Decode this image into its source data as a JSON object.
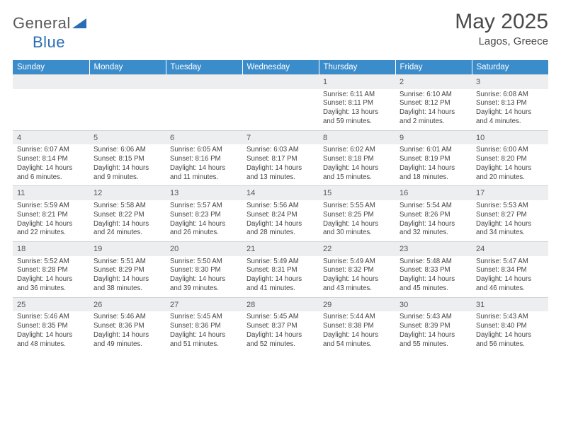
{
  "logo": {
    "word1": "General",
    "word2": "Blue"
  },
  "title": {
    "month": "May 2025",
    "location": "Lagos, Greece"
  },
  "dayHeaders": [
    "Sunday",
    "Monday",
    "Tuesday",
    "Wednesday",
    "Thursday",
    "Friday",
    "Saturday"
  ],
  "colors": {
    "header_bg": "#3b8ccb",
    "header_text": "#ffffff",
    "daynum_bg": "#eceef0",
    "body_text": "#444444",
    "logo_blue": "#2a6db6"
  },
  "weeks": [
    [
      null,
      null,
      null,
      null,
      {
        "n": "1",
        "sr": "Sunrise: 6:11 AM",
        "ss": "Sunset: 8:11 PM",
        "dl": "Daylight: 13 hours and 59 minutes."
      },
      {
        "n": "2",
        "sr": "Sunrise: 6:10 AM",
        "ss": "Sunset: 8:12 PM",
        "dl": "Daylight: 14 hours and 2 minutes."
      },
      {
        "n": "3",
        "sr": "Sunrise: 6:08 AM",
        "ss": "Sunset: 8:13 PM",
        "dl": "Daylight: 14 hours and 4 minutes."
      }
    ],
    [
      {
        "n": "4",
        "sr": "Sunrise: 6:07 AM",
        "ss": "Sunset: 8:14 PM",
        "dl": "Daylight: 14 hours and 6 minutes."
      },
      {
        "n": "5",
        "sr": "Sunrise: 6:06 AM",
        "ss": "Sunset: 8:15 PM",
        "dl": "Daylight: 14 hours and 9 minutes."
      },
      {
        "n": "6",
        "sr": "Sunrise: 6:05 AM",
        "ss": "Sunset: 8:16 PM",
        "dl": "Daylight: 14 hours and 11 minutes."
      },
      {
        "n": "7",
        "sr": "Sunrise: 6:03 AM",
        "ss": "Sunset: 8:17 PM",
        "dl": "Daylight: 14 hours and 13 minutes."
      },
      {
        "n": "8",
        "sr": "Sunrise: 6:02 AM",
        "ss": "Sunset: 8:18 PM",
        "dl": "Daylight: 14 hours and 15 minutes."
      },
      {
        "n": "9",
        "sr": "Sunrise: 6:01 AM",
        "ss": "Sunset: 8:19 PM",
        "dl": "Daylight: 14 hours and 18 minutes."
      },
      {
        "n": "10",
        "sr": "Sunrise: 6:00 AM",
        "ss": "Sunset: 8:20 PM",
        "dl": "Daylight: 14 hours and 20 minutes."
      }
    ],
    [
      {
        "n": "11",
        "sr": "Sunrise: 5:59 AM",
        "ss": "Sunset: 8:21 PM",
        "dl": "Daylight: 14 hours and 22 minutes."
      },
      {
        "n": "12",
        "sr": "Sunrise: 5:58 AM",
        "ss": "Sunset: 8:22 PM",
        "dl": "Daylight: 14 hours and 24 minutes."
      },
      {
        "n": "13",
        "sr": "Sunrise: 5:57 AM",
        "ss": "Sunset: 8:23 PM",
        "dl": "Daylight: 14 hours and 26 minutes."
      },
      {
        "n": "14",
        "sr": "Sunrise: 5:56 AM",
        "ss": "Sunset: 8:24 PM",
        "dl": "Daylight: 14 hours and 28 minutes."
      },
      {
        "n": "15",
        "sr": "Sunrise: 5:55 AM",
        "ss": "Sunset: 8:25 PM",
        "dl": "Daylight: 14 hours and 30 minutes."
      },
      {
        "n": "16",
        "sr": "Sunrise: 5:54 AM",
        "ss": "Sunset: 8:26 PM",
        "dl": "Daylight: 14 hours and 32 minutes."
      },
      {
        "n": "17",
        "sr": "Sunrise: 5:53 AM",
        "ss": "Sunset: 8:27 PM",
        "dl": "Daylight: 14 hours and 34 minutes."
      }
    ],
    [
      {
        "n": "18",
        "sr": "Sunrise: 5:52 AM",
        "ss": "Sunset: 8:28 PM",
        "dl": "Daylight: 14 hours and 36 minutes."
      },
      {
        "n": "19",
        "sr": "Sunrise: 5:51 AM",
        "ss": "Sunset: 8:29 PM",
        "dl": "Daylight: 14 hours and 38 minutes."
      },
      {
        "n": "20",
        "sr": "Sunrise: 5:50 AM",
        "ss": "Sunset: 8:30 PM",
        "dl": "Daylight: 14 hours and 39 minutes."
      },
      {
        "n": "21",
        "sr": "Sunrise: 5:49 AM",
        "ss": "Sunset: 8:31 PM",
        "dl": "Daylight: 14 hours and 41 minutes."
      },
      {
        "n": "22",
        "sr": "Sunrise: 5:49 AM",
        "ss": "Sunset: 8:32 PM",
        "dl": "Daylight: 14 hours and 43 minutes."
      },
      {
        "n": "23",
        "sr": "Sunrise: 5:48 AM",
        "ss": "Sunset: 8:33 PM",
        "dl": "Daylight: 14 hours and 45 minutes."
      },
      {
        "n": "24",
        "sr": "Sunrise: 5:47 AM",
        "ss": "Sunset: 8:34 PM",
        "dl": "Daylight: 14 hours and 46 minutes."
      }
    ],
    [
      {
        "n": "25",
        "sr": "Sunrise: 5:46 AM",
        "ss": "Sunset: 8:35 PM",
        "dl": "Daylight: 14 hours and 48 minutes."
      },
      {
        "n": "26",
        "sr": "Sunrise: 5:46 AM",
        "ss": "Sunset: 8:36 PM",
        "dl": "Daylight: 14 hours and 49 minutes."
      },
      {
        "n": "27",
        "sr": "Sunrise: 5:45 AM",
        "ss": "Sunset: 8:36 PM",
        "dl": "Daylight: 14 hours and 51 minutes."
      },
      {
        "n": "28",
        "sr": "Sunrise: 5:45 AM",
        "ss": "Sunset: 8:37 PM",
        "dl": "Daylight: 14 hours and 52 minutes."
      },
      {
        "n": "29",
        "sr": "Sunrise: 5:44 AM",
        "ss": "Sunset: 8:38 PM",
        "dl": "Daylight: 14 hours and 54 minutes."
      },
      {
        "n": "30",
        "sr": "Sunrise: 5:43 AM",
        "ss": "Sunset: 8:39 PM",
        "dl": "Daylight: 14 hours and 55 minutes."
      },
      {
        "n": "31",
        "sr": "Sunrise: 5:43 AM",
        "ss": "Sunset: 8:40 PM",
        "dl": "Daylight: 14 hours and 56 minutes."
      }
    ]
  ]
}
